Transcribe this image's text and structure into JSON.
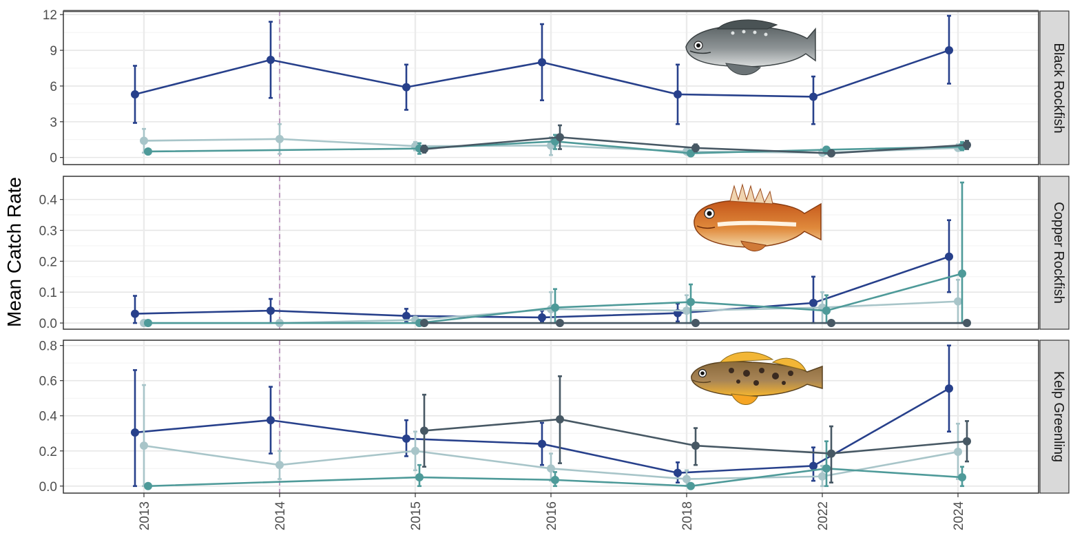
{
  "chart_data": {
    "type": "line",
    "ylabel": "Mean Catch Rate",
    "xlabel": "",
    "x_categories": [
      "2013",
      "2014",
      "2015",
      "2016",
      "2018",
      "2022",
      "2024"
    ],
    "reference_line_x": "2014",
    "grid": true,
    "legend": "none",
    "series_colors": [
      "#27408b",
      "#a8c5c9",
      "#4e9a99",
      "#475864"
    ],
    "panels": [
      {
        "strip_label": "Black Rockfish",
        "icon": "black-rockfish-illustration",
        "ylim": [
          -0.6,
          12.3
        ],
        "yticks": [
          0,
          3,
          6,
          9,
          12
        ],
        "series": [
          {
            "values": [
              5.3,
              8.2,
              5.9,
              8.0,
              5.3,
              5.1,
              9.0
            ],
            "lower": [
              2.9,
              5.0,
              4.0,
              4.8,
              2.8,
              2.8,
              6.2
            ],
            "upper": [
              7.7,
              11.4,
              7.8,
              11.2,
              7.8,
              6.8,
              11.9
            ]
          },
          {
            "values": [
              1.4,
              1.55,
              0.95,
              1.0,
              0.5,
              0.4,
              0.8
            ],
            "lower": [
              0.4,
              0.3,
              0.6,
              0.2,
              0.3,
              0.2,
              0.6
            ],
            "upper": [
              2.4,
              2.8,
              1.3,
              1.7,
              0.8,
              0.7,
              1.1
            ]
          },
          {
            "values": [
              0.5,
              null,
              0.75,
              1.35,
              0.35,
              0.65,
              0.9
            ],
            "lower": [
              0.4,
              null,
              0.3,
              0.7,
              0.2,
              0.3,
              0.6
            ],
            "upper": [
              0.6,
              null,
              1.2,
              1.9,
              0.5,
              0.9,
              1.3
            ]
          },
          {
            "values": [
              null,
              null,
              0.7,
              1.7,
              0.8,
              0.35,
              1.05
            ],
            "lower": [
              null,
              null,
              0.4,
              0.7,
              0.5,
              0.2,
              0.7
            ],
            "upper": [
              null,
              null,
              1.0,
              2.7,
              1.1,
              0.6,
              1.4
            ]
          }
        ]
      },
      {
        "strip_label": "Copper Rockfish",
        "icon": "copper-rockfish-illustration",
        "ylim": [
          -0.02,
          0.475
        ],
        "yticks": [
          0.0,
          0.1,
          0.2,
          0.3,
          0.4
        ],
        "series": [
          {
            "values": [
              0.03,
              0.04,
              0.023,
              0.018,
              0.032,
              0.065,
              0.215
            ],
            "lower": [
              0.0,
              0.0,
              0.003,
              0.003,
              0.005,
              0.0,
              0.1
            ],
            "upper": [
              0.088,
              0.078,
              0.046,
              0.04,
              0.063,
              0.15,
              0.333
            ]
          },
          {
            "values": [
              0.0,
              0.0,
              0.01,
              0.045,
              0.04,
              0.05,
              0.07
            ],
            "lower": [
              0.0,
              0.0,
              0.0,
              0.0,
              0.0,
              0.0,
              0.0
            ],
            "upper": [
              0.0,
              0.0,
              0.02,
              0.1,
              0.09,
              0.1,
              0.14
            ]
          },
          {
            "values": [
              0.0,
              null,
              0.0,
              0.05,
              0.068,
              0.04,
              0.16
            ],
            "lower": [
              0.0,
              null,
              0.0,
              0.0,
              0.0,
              0.0,
              0.0
            ],
            "upper": [
              0.0,
              null,
              0.0,
              0.11,
              0.125,
              0.09,
              0.455
            ]
          },
          {
            "values": [
              null,
              null,
              0.0,
              0.0,
              0.0,
              0.0,
              0.0
            ],
            "lower": [
              null,
              null,
              0.0,
              0.0,
              0.0,
              0.0,
              0.0
            ],
            "upper": [
              null,
              null,
              0.0,
              0.0,
              0.0,
              0.0,
              0.0
            ]
          }
        ]
      },
      {
        "strip_label": "Kelp Greenling",
        "icon": "kelp-greenling-illustration",
        "ylim": [
          -0.04,
          0.83
        ],
        "yticks": [
          0.0,
          0.2,
          0.4,
          0.6,
          0.8
        ],
        "series": [
          {
            "values": [
              0.305,
              0.375,
              0.27,
              0.24,
              0.075,
              0.115,
              0.555
            ],
            "lower": [
              0.0,
              0.185,
              0.17,
              0.12,
              0.02,
              0.03,
              0.31
            ],
            "upper": [
              0.66,
              0.565,
              0.375,
              0.36,
              0.135,
              0.22,
              0.8
            ]
          },
          {
            "values": [
              0.23,
              0.12,
              0.2,
              0.1,
              0.04,
              0.055,
              0.195
            ],
            "lower": [
              0.0,
              0.04,
              0.09,
              0.03,
              0.0,
              0.0,
              0.04
            ],
            "upper": [
              0.575,
              0.2,
              0.31,
              0.185,
              0.09,
              0.115,
              0.355
            ]
          },
          {
            "values": [
              0.0,
              null,
              0.05,
              0.035,
              0.0,
              0.1,
              0.05
            ],
            "lower": [
              0.0,
              null,
              0.0,
              0.0,
              0.0,
              0.0,
              0.0
            ],
            "upper": [
              0.0,
              null,
              0.12,
              0.08,
              0.0,
              0.255,
              0.11
            ]
          },
          {
            "values": [
              null,
              null,
              0.315,
              0.38,
              0.23,
              0.185,
              0.255
            ],
            "lower": [
              null,
              null,
              0.11,
              0.13,
              0.12,
              0.02,
              0.14
            ],
            "upper": [
              null,
              null,
              0.52,
              0.625,
              0.33,
              0.34,
              0.37
            ]
          }
        ]
      }
    ]
  }
}
